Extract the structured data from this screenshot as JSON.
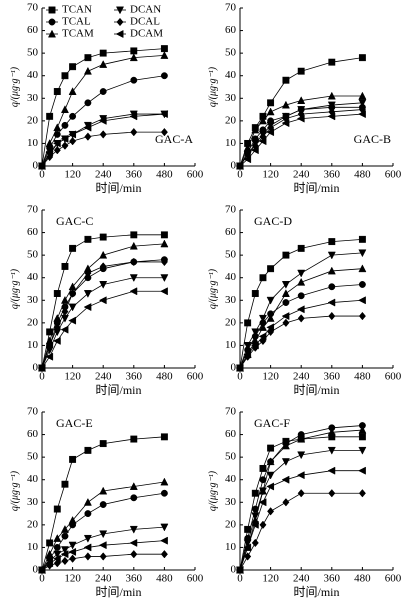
{
  "chart_data": [
    {
      "type": "line",
      "title": "GAC-A",
      "title_position": "bottom-right",
      "x_label": "时间/min",
      "y_label": "q/(μg·g⁻¹)",
      "xlim": [
        0,
        600
      ],
      "ylim": [
        0,
        70
      ],
      "xticks": [
        0,
        120,
        240,
        360,
        480,
        600
      ],
      "yticks": [
        0,
        10,
        20,
        30,
        40,
        50,
        60,
        70
      ],
      "legend": "top-left",
      "x": [
        0,
        30,
        60,
        90,
        120,
        180,
        240,
        360,
        480
      ],
      "series": [
        {
          "name": "TCAN",
          "marker": "square",
          "color": "#000000",
          "values": [
            0,
            22,
            33,
            40,
            44,
            48,
            50,
            51,
            52
          ]
        },
        {
          "name": "TCAL",
          "marker": "circle",
          "color": "#000000",
          "values": [
            0,
            8,
            14,
            18,
            22,
            28,
            33,
            38,
            40
          ]
        },
        {
          "name": "TCAM",
          "marker": "triangle-up",
          "color": "#000000",
          "values": [
            0,
            10,
            17,
            25,
            33,
            42,
            45,
            48,
            49
          ]
        },
        {
          "name": "DCAN",
          "marker": "triangle-down",
          "color": "#000000",
          "values": [
            0,
            5,
            10,
            12,
            14,
            18,
            21,
            23,
            23
          ]
        },
        {
          "name": "DCAL",
          "marker": "diamond",
          "color": "#000000",
          "values": [
            0,
            4,
            7,
            9,
            11,
            13,
            14,
            15,
            15
          ]
        },
        {
          "name": "DCAM",
          "marker": "triangle-left",
          "color": "#000000",
          "values": [
            0,
            6,
            10,
            12,
            14,
            17,
            20,
            22,
            23
          ]
        }
      ]
    },
    {
      "type": "line",
      "title": "GAC-B",
      "title_position": "bottom-right",
      "x_label": "时间/min",
      "y_label": "q/(μg·g⁻¹)",
      "xlim": [
        0,
        600
      ],
      "ylim": [
        0,
        70
      ],
      "xticks": [
        0,
        120,
        240,
        360,
        480,
        600
      ],
      "yticks": [
        0,
        10,
        20,
        30,
        40,
        50,
        60,
        70
      ],
      "x": [
        0,
        30,
        60,
        90,
        120,
        180,
        240,
        360,
        480
      ],
      "series": [
        {
          "marker": "square",
          "color": "#000000",
          "values": [
            0,
            10,
            17,
            22,
            28,
            38,
            42,
            46,
            48
          ]
        },
        {
          "marker": "circle",
          "color": "#000000",
          "values": [
            0,
            6,
            12,
            16,
            20,
            22,
            25,
            26,
            26
          ]
        },
        {
          "marker": "triangle-up",
          "color": "#000000",
          "values": [
            0,
            8,
            16,
            20,
            24,
            27,
            29,
            31,
            31
          ]
        },
        {
          "marker": "triangle-down",
          "color": "#000000",
          "values": [
            0,
            5,
            10,
            14,
            18,
            22,
            25,
            27,
            28
          ]
        },
        {
          "marker": "diamond",
          "color": "#000000",
          "values": [
            0,
            5,
            9,
            13,
            17,
            21,
            23,
            24,
            25
          ]
        },
        {
          "marker": "triangle-left",
          "color": "#000000",
          "values": [
            0,
            3,
            7,
            11,
            15,
            19,
            21,
            22,
            23
          ]
        }
      ]
    },
    {
      "type": "line",
      "title": "GAC-C",
      "title_position": "top-left",
      "x_label": "时间/min",
      "y_label": "q/(μg·g⁻¹)",
      "xlim": [
        0,
        600
      ],
      "ylim": [
        0,
        70
      ],
      "xticks": [
        0,
        120,
        240,
        360,
        480,
        600
      ],
      "yticks": [
        0,
        10,
        20,
        30,
        40,
        50,
        60,
        70
      ],
      "x": [
        0,
        30,
        60,
        90,
        120,
        180,
        240,
        360,
        480
      ],
      "series": [
        {
          "marker": "square",
          "color": "#000000",
          "values": [
            0,
            16,
            33,
            45,
            53,
            57,
            58,
            59,
            59
          ]
        },
        {
          "marker": "circle",
          "color": "#000000",
          "values": [
            0,
            10,
            20,
            27,
            33,
            40,
            44,
            47,
            48
          ]
        },
        {
          "marker": "triangle-up",
          "color": "#000000",
          "values": [
            0,
            12,
            22,
            30,
            36,
            44,
            50,
            54,
            55
          ]
        },
        {
          "marker": "triangle-down",
          "color": "#000000",
          "values": [
            0,
            8,
            16,
            22,
            27,
            33,
            37,
            40,
            40
          ]
        },
        {
          "marker": "diamond",
          "color": "#000000",
          "values": [
            0,
            10,
            18,
            25,
            33,
            42,
            45,
            47,
            47
          ]
        },
        {
          "marker": "triangle-left",
          "color": "#000000",
          "values": [
            0,
            5,
            12,
            17,
            21,
            27,
            30,
            34,
            34
          ]
        }
      ]
    },
    {
      "type": "line",
      "title": "GAC-D",
      "title_position": "top-left",
      "x_label": "时间/min",
      "y_label": "q/(μg·g⁻¹)",
      "xlim": [
        0,
        600
      ],
      "ylim": [
        0,
        70
      ],
      "xticks": [
        0,
        120,
        240,
        360,
        480,
        600
      ],
      "yticks": [
        0,
        10,
        20,
        30,
        40,
        50,
        60,
        70
      ],
      "x": [
        0,
        30,
        60,
        90,
        120,
        180,
        240,
        360,
        480
      ],
      "series": [
        {
          "marker": "square",
          "color": "#000000",
          "values": [
            0,
            20,
            33,
            40,
            44,
            50,
            53,
            56,
            57
          ]
        },
        {
          "marker": "circle",
          "color": "#000000",
          "values": [
            0,
            8,
            14,
            20,
            24,
            29,
            32,
            36,
            37
          ]
        },
        {
          "marker": "triangle-up",
          "color": "#000000",
          "values": [
            0,
            6,
            12,
            18,
            22,
            33,
            38,
            43,
            44
          ]
        },
        {
          "marker": "triangle-down",
          "color": "#000000",
          "values": [
            0,
            10,
            16,
            22,
            30,
            37,
            42,
            50,
            51
          ]
        },
        {
          "marker": "diamond",
          "color": "#000000",
          "values": [
            0,
            5,
            9,
            12,
            16,
            20,
            22,
            23,
            23
          ]
        },
        {
          "marker": "triangle-left",
          "color": "#000000",
          "values": [
            0,
            6,
            10,
            14,
            18,
            23,
            26,
            29,
            30
          ]
        }
      ]
    },
    {
      "type": "line",
      "title": "GAC-E",
      "title_position": "top-left",
      "x_label": "时间/min",
      "y_label": "q/(μg·g⁻¹)",
      "xlim": [
        0,
        600
      ],
      "ylim": [
        0,
        70
      ],
      "xticks": [
        0,
        120,
        240,
        360,
        480,
        600
      ],
      "yticks": [
        0,
        10,
        20,
        30,
        40,
        50,
        60,
        70
      ],
      "x": [
        0,
        30,
        60,
        90,
        120,
        180,
        240,
        360,
        480
      ],
      "series": [
        {
          "marker": "square",
          "color": "#000000",
          "values": [
            0,
            12,
            27,
            38,
            49,
            53,
            56,
            58,
            59
          ]
        },
        {
          "marker": "circle",
          "color": "#000000",
          "values": [
            0,
            5,
            10,
            15,
            20,
            25,
            29,
            32,
            34
          ]
        },
        {
          "marker": "triangle-up",
          "color": "#000000",
          "values": [
            0,
            7,
            14,
            18,
            22,
            30,
            35,
            37,
            39
          ]
        },
        {
          "marker": "triangle-down",
          "color": "#000000",
          "values": [
            0,
            4,
            7,
            9,
            11,
            14,
            16,
            18,
            19
          ]
        },
        {
          "marker": "diamond",
          "color": "#000000",
          "values": [
            0,
            2,
            3,
            4,
            5,
            6,
            6,
            7,
            7
          ]
        },
        {
          "marker": "triangle-left",
          "color": "#000000",
          "values": [
            0,
            3,
            5,
            7,
            8,
            10,
            11,
            12,
            13
          ]
        }
      ]
    },
    {
      "type": "line",
      "title": "GAC-F",
      "title_position": "top-left",
      "x_label": "时间/min",
      "y_label": "q/(μg·g⁻¹)",
      "xlim": [
        0,
        600
      ],
      "ylim": [
        0,
        70
      ],
      "xticks": [
        0,
        120,
        240,
        360,
        480,
        600
      ],
      "yticks": [
        0,
        10,
        20,
        30,
        40,
        50,
        60,
        70
      ],
      "x": [
        0,
        30,
        60,
        90,
        120,
        180,
        240,
        360,
        480
      ],
      "series": [
        {
          "marker": "square",
          "color": "#000000",
          "values": [
            0,
            18,
            34,
            45,
            54,
            57,
            58,
            59,
            59
          ]
        },
        {
          "marker": "circle",
          "color": "#000000",
          "values": [
            0,
            14,
            27,
            40,
            48,
            56,
            60,
            63,
            64
          ]
        },
        {
          "marker": "triangle-up",
          "color": "#000000",
          "values": [
            0,
            10,
            22,
            35,
            48,
            55,
            58,
            61,
            62
          ]
        },
        {
          "marker": "triangle-down",
          "color": "#000000",
          "values": [
            0,
            12,
            24,
            35,
            42,
            48,
            51,
            53,
            53
          ]
        },
        {
          "marker": "diamond",
          "color": "#000000",
          "values": [
            0,
            6,
            12,
            20,
            26,
            30,
            34,
            34,
            34
          ]
        },
        {
          "marker": "triangle-left",
          "color": "#000000",
          "values": [
            0,
            10,
            20,
            30,
            37,
            40,
            42,
            44,
            44
          ]
        }
      ]
    }
  ]
}
